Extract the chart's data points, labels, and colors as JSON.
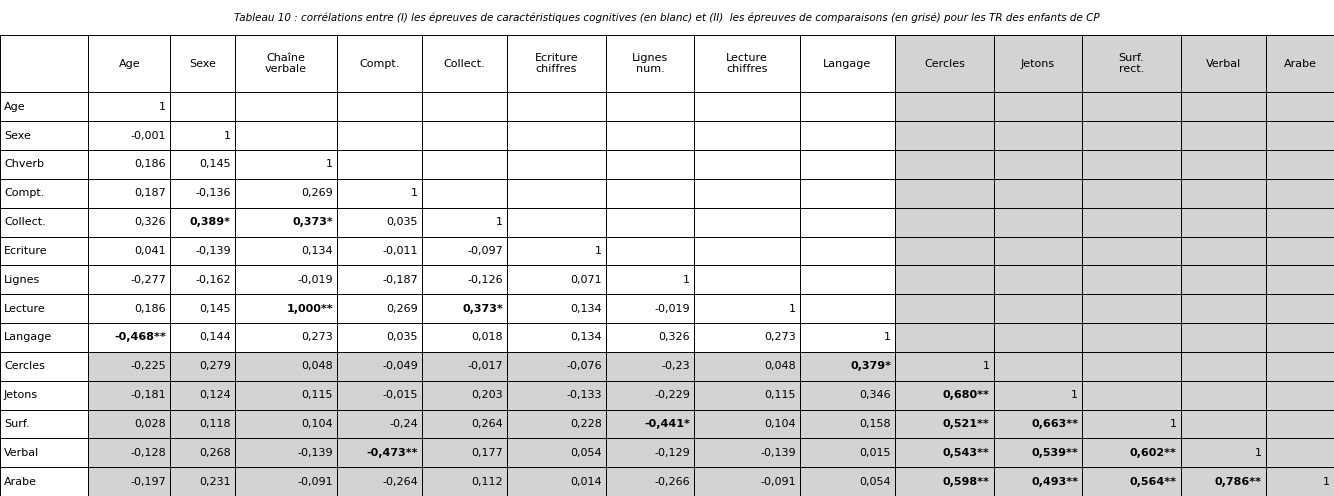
{
  "title": "Tableau 10 : corrélations entre (I) les épreuves de caractéristiques cognitives (en blanc) et (II)  les épreuves de comparaisons (en grisé) pour les TR des enfants de CP",
  "col_headers": [
    "",
    "Age",
    "Sexe",
    "Chaîne\nverbale",
    "Compt.",
    "Collect.",
    "Ecriture\nchiffres",
    "Lignes\nnum.",
    "Lecture\nchiffres",
    "Langage",
    "Cercles",
    "Jetons",
    "Surf.\nrect.",
    "Verbal",
    "Arabe"
  ],
  "row_headers": [
    "Age",
    "Sexe",
    "Chverb",
    "Compt.",
    "Collect.",
    "Ecriture",
    "Lignes",
    "Lecture",
    "Langage",
    "Cercles",
    "Jetons",
    "Surf.",
    "Verbal",
    "Arabe"
  ],
  "data": [
    [
      "1",
      "",
      "",
      "",
      "",
      "",
      "",
      "",
      "",
      "",
      "",
      "",
      "",
      ""
    ],
    [
      "-0,001",
      "1",
      "",
      "",
      "",
      "",
      "",
      "",
      "",
      "",
      "",
      "",
      "",
      ""
    ],
    [
      "0,186",
      "0,145",
      "1",
      "",
      "",
      "",
      "",
      "",
      "",
      "",
      "",
      "",
      "",
      ""
    ],
    [
      "0,187",
      "-0,136",
      "0,269",
      "1",
      "",
      "",
      "",
      "",
      "",
      "",
      "",
      "",
      "",
      ""
    ],
    [
      "0,326",
      "0,389*",
      "0,373*",
      "0,035",
      "1",
      "",
      "",
      "",
      "",
      "",
      "",
      "",
      "",
      ""
    ],
    [
      "0,041",
      "-0,139",
      "0,134",
      "-0,011",
      "-0,097",
      "1",
      "",
      "",
      "",
      "",
      "",
      "",
      "",
      ""
    ],
    [
      "-0,277",
      "-0,162",
      "-0,019",
      "-0,187",
      "-0,126",
      "0,071",
      "1",
      "",
      "",
      "",
      "",
      "",
      "",
      ""
    ],
    [
      "0,186",
      "0,145",
      "1,000**",
      "0,269",
      "0,373*",
      "0,134",
      "-0,019",
      "1",
      "",
      "",
      "",
      "",
      "",
      ""
    ],
    [
      "-0,468**",
      "0,144",
      "0,273",
      "0,035",
      "0,018",
      "0,134",
      "0,326",
      "0,273",
      "1",
      "",
      "",
      "",
      "",
      ""
    ],
    [
      "-0,225",
      "0,279",
      "0,048",
      "-0,049",
      "-0,017",
      "-0,076",
      "-0,23",
      "0,048",
      "0,379*",
      "1",
      "",
      "",
      "",
      ""
    ],
    [
      "-0,181",
      "0,124",
      "0,115",
      "-0,015",
      "0,203",
      "-0,133",
      "-0,229",
      "0,115",
      "0,346",
      "0,680**",
      "1",
      "",
      "",
      ""
    ],
    [
      "0,028",
      "0,118",
      "0,104",
      "-0,24",
      "0,264",
      "0,228",
      "-0,441*",
      "0,104",
      "0,158",
      "0,521**",
      "0,663**",
      "1",
      "",
      ""
    ],
    [
      "-0,128",
      "0,268",
      "-0,139",
      "-0,473**",
      "0,177",
      "0,054",
      "-0,129",
      "-0,139",
      "0,015",
      "0,543**",
      "0,539**",
      "0,602**",
      "1",
      ""
    ],
    [
      "-0,197",
      "0,231",
      "-0,091",
      "-0,264",
      "0,112",
      "0,014",
      "-0,266",
      "-0,091",
      "0,054",
      "0,598**",
      "0,493**",
      "0,564**",
      "0,786**",
      "1"
    ]
  ],
  "bold_rows_cols": [
    [
      4,
      1
    ],
    [
      4,
      2
    ],
    [
      7,
      2
    ],
    [
      7,
      4
    ],
    [
      8,
      0
    ],
    [
      9,
      8
    ],
    [
      10,
      9
    ],
    [
      11,
      6
    ],
    [
      11,
      9
    ],
    [
      11,
      10
    ],
    [
      12,
      3
    ],
    [
      12,
      9
    ],
    [
      12,
      10
    ],
    [
      12,
      11
    ],
    [
      13,
      9
    ],
    [
      13,
      10
    ],
    [
      13,
      11
    ],
    [
      13,
      12
    ]
  ],
  "bg_white": "#FFFFFF",
  "bg_gray": "#D3D3D3",
  "border_color": "#000000",
  "text_color": "#000000",
  "fontsize": 8.0,
  "header_fontsize": 8.0,
  "title_fontsize": 7.5
}
